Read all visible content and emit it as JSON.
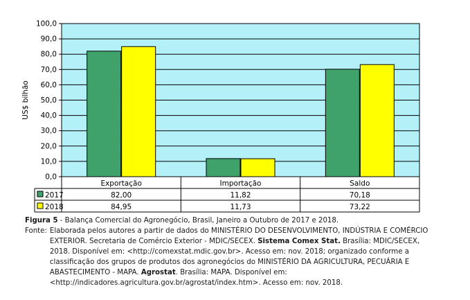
{
  "chart_data": {
    "type": "bar",
    "ylabel": "US$ bilhão",
    "ylim": [
      0,
      100
    ],
    "yticks": [
      "0,0",
      "10,0",
      "20,0",
      "30,0",
      "40,0",
      "50,0",
      "60,0",
      "70,0",
      "80,0",
      "90,0",
      "100,0"
    ],
    "categories": [
      "Exportação",
      "Importação",
      "Saldo"
    ],
    "series": [
      {
        "name": "2017",
        "values": [
          82.0,
          11.82,
          70.18
        ],
        "labels": [
          "82,00",
          "11,82",
          "70,18"
        ]
      },
      {
        "name": "2018",
        "values": [
          84.95,
          11.73,
          73.22
        ],
        "labels": [
          "84,95",
          "11,73",
          "73,22"
        ]
      }
    ],
    "colors": {
      "plot_bg": "#b4f0f8",
      "series_2017": "#3fa26b",
      "series_2018": "#ffff00",
      "grid": "#000000"
    },
    "grid": true,
    "legend": "data table below plot"
  },
  "caption": {
    "figure_label": "Figura 5",
    "figure_text": " - Balança Comercial do Agronegócio, Brasil, Janeiro a Outubro de 2017 e 2018.",
    "fonte_label": "Fonte:",
    "fonte_parts": {
      "p1": "Elaborada pelos autores a partir de dados do MINISTÉRIO DO DESENVOLVIMENTO, INDÚSTRIA E COMÉRCIO EXTERIOR. Secretaria de Comércio Exterior - MDIC/SECEX. ",
      "p2": "Sistema Comex Stat.",
      "p3": " Brasília: MDIC/SECEX, 2018. Disponível em: <http://comexstat.mdic.gov.br>. Acesso em: nov. 2018; organizado conforme a classificação dos grupos de produtos dos agronegócios do MINISTÉRIO DA AGRICULTURA, PECUÁRIA E ABASTECIMENTO - MAPA. ",
      "p4": "Agrostat",
      "p5": ". Brasília: MAPA. Disponível em: <http://indicadores.agricultura.gov.br/agrostat/index.htm>. Acesso em: nov. 2018."
    }
  }
}
